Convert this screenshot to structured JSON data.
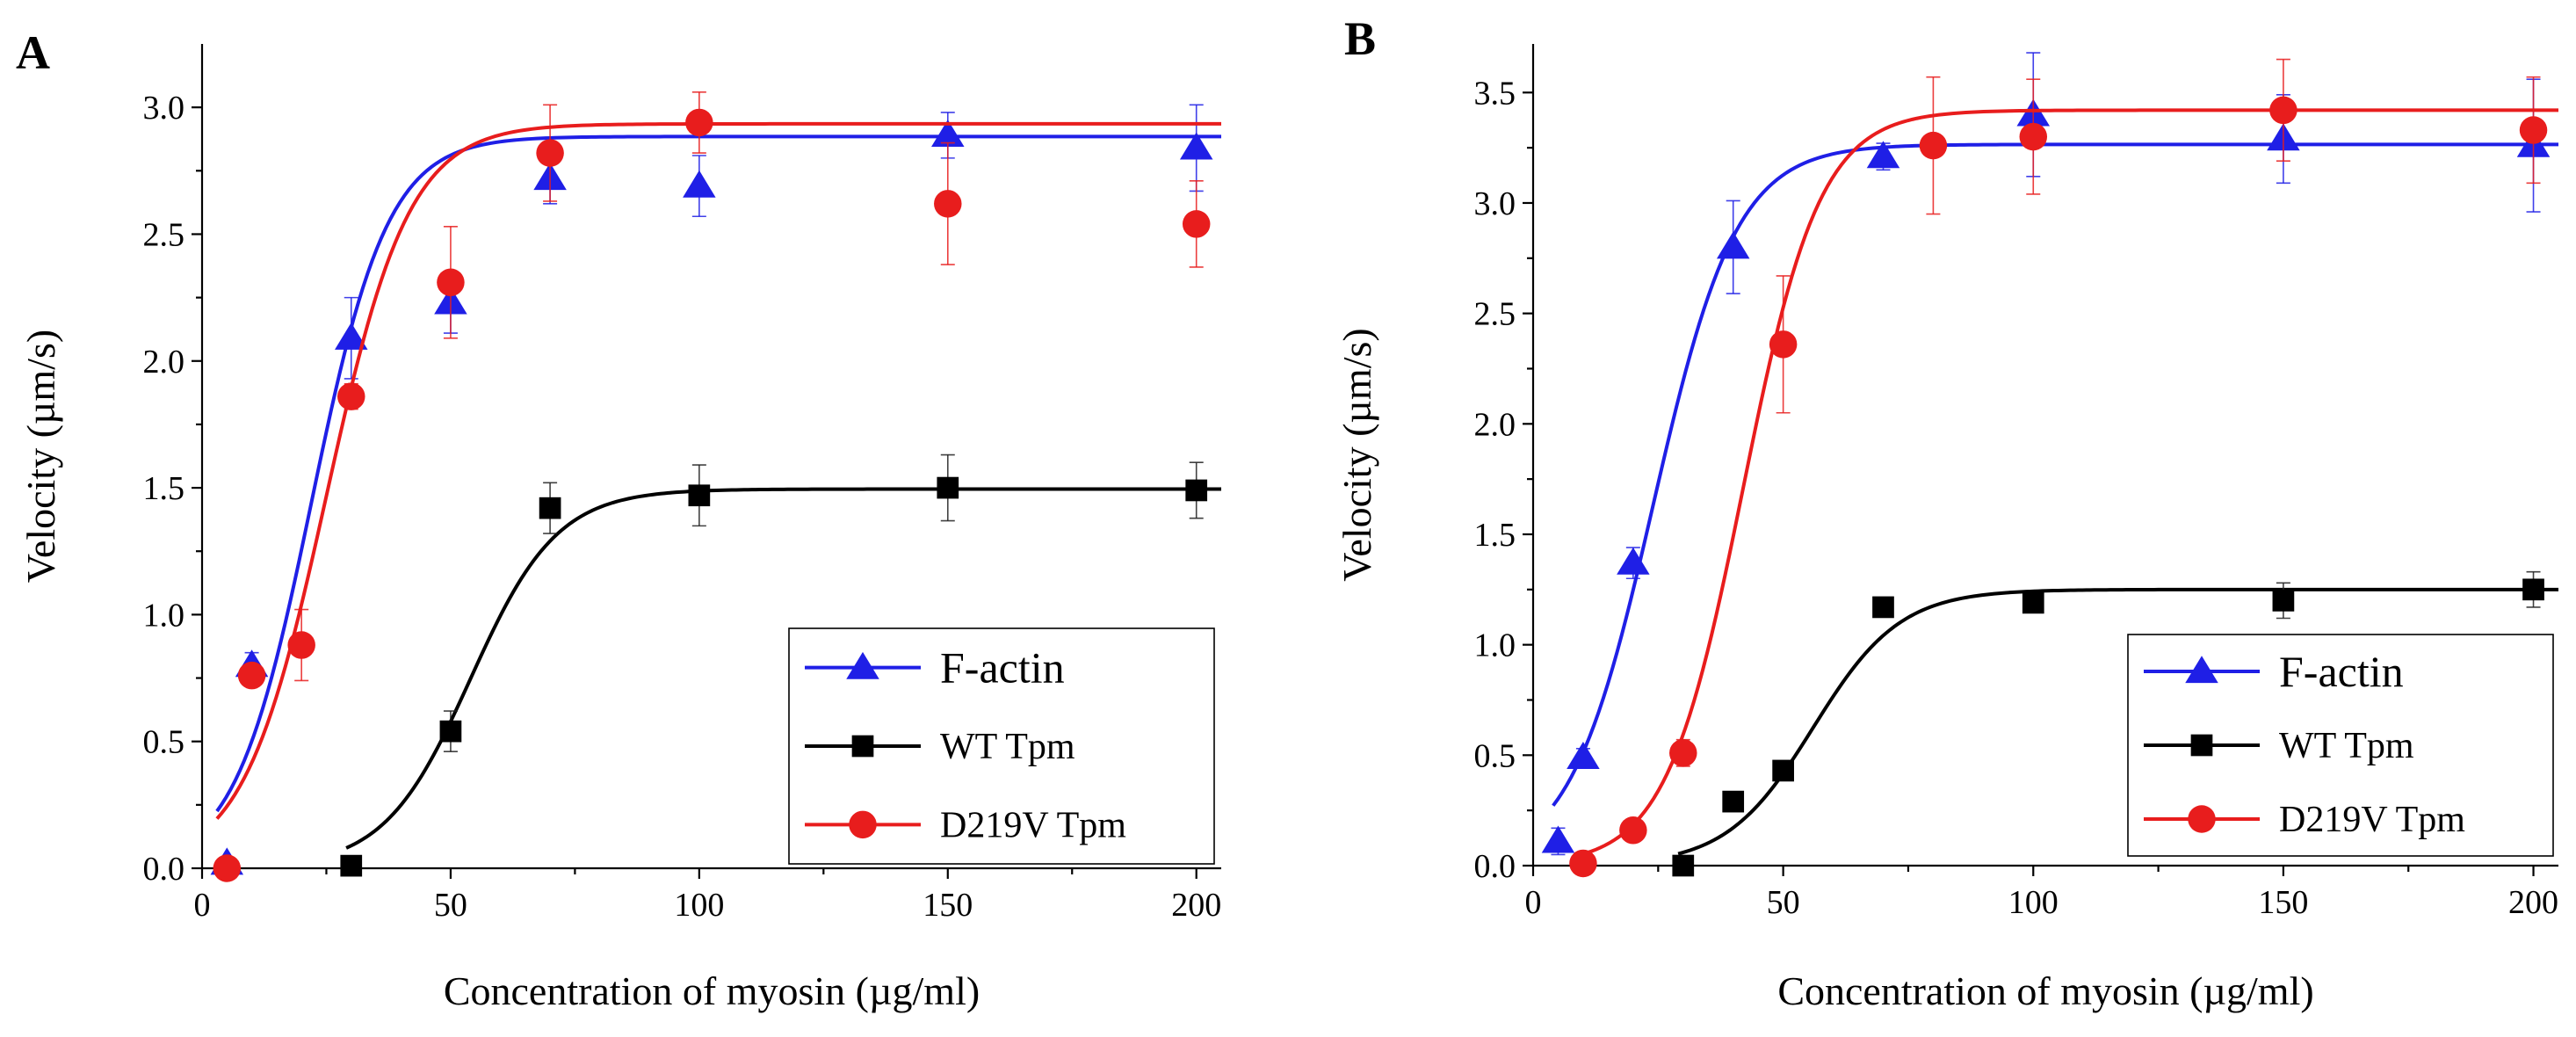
{
  "chart_data": [
    {
      "type": "scatter",
      "panel_label": "A",
      "title": "",
      "xlabel": "Concentration of myosin (µg/ml)",
      "ylabel": "Velocity (µm/s)",
      "xlim": [
        0,
        205
      ],
      "ylim": [
        0,
        3.25
      ],
      "xticks": [
        0,
        50,
        100,
        150,
        200
      ],
      "yticks": [
        0.0,
        0.5,
        1.0,
        1.5,
        2.0,
        2.5,
        3.0
      ],
      "xtick_labels": [
        "0",
        "50",
        "100",
        "150",
        "200"
      ],
      "ytick_labels": [
        "0.0",
        "0.5",
        "1.0",
        "1.5",
        "2.0",
        "2.5",
        "3.0"
      ],
      "legend_position": "bottom-right",
      "series": [
        {
          "name": "F-actin",
          "color": "#1f1fe6",
          "marker": "triangle",
          "points": [
            {
              "x": 5,
              "y": 0.02,
              "err": 0.02
            },
            {
              "x": 10,
              "y": 0.8,
              "err": 0.05
            },
            {
              "x": 30,
              "y": 2.09,
              "err": 0.16
            },
            {
              "x": 50,
              "y": 2.23,
              "err": 0.12
            },
            {
              "x": 70,
              "y": 2.72,
              "err": 0.1
            },
            {
              "x": 100,
              "y": 2.69,
              "err": 0.12
            },
            {
              "x": 150,
              "y": 2.89,
              "err": 0.09
            },
            {
              "x": 200,
              "y": 2.84,
              "err": 0.17
            }
          ],
          "fit": {
            "plateau": 2.885,
            "k": 0.13,
            "x_half": 22,
            "x_start": 3,
            "x_end": 205
          }
        },
        {
          "name": "WT Tpm",
          "color": "#000000",
          "marker": "square",
          "points": [
            {
              "x": 30,
              "y": 0.01,
              "err": 0
            },
            {
              "x": 50,
              "y": 0.54,
              "err": 0.08
            },
            {
              "x": 70,
              "y": 1.42,
              "err": 0.1
            },
            {
              "x": 100,
              "y": 1.47,
              "err": 0.12
            },
            {
              "x": 150,
              "y": 1.5,
              "err": 0.13
            },
            {
              "x": 200,
              "y": 1.49,
              "err": 0.11
            }
          ],
          "fit": {
            "plateau": 1.495,
            "k": 0.115,
            "x_half": 54,
            "x_start": 29,
            "x_end": 205
          }
        },
        {
          "name": "D219V Tpm",
          "color": "#e81d1d",
          "marker": "circle",
          "points": [
            {
              "x": 5,
              "y": 0.0,
              "err": 0
            },
            {
              "x": 10,
              "y": 0.76,
              "err": 0.03
            },
            {
              "x": 20,
              "y": 0.88,
              "err": 0.14
            },
            {
              "x": 30,
              "y": 1.86,
              "err": 0.05
            },
            {
              "x": 50,
              "y": 2.31,
              "err": 0.22
            },
            {
              "x": 70,
              "y": 2.82,
              "err": 0.19
            },
            {
              "x": 100,
              "y": 2.94,
              "err": 0.12
            },
            {
              "x": 150,
              "y": 2.62,
              "err": 0.24
            },
            {
              "x": 200,
              "y": 2.54,
              "err": 0.17
            }
          ],
          "fit": {
            "plateau": 2.935,
            "k": 0.12,
            "x_half": 25,
            "x_start": 3,
            "x_end": 205
          }
        }
      ]
    },
    {
      "type": "scatter",
      "panel_label": "B",
      "title": "",
      "xlabel": "Concentration of myosin (µg/ml)",
      "ylabel": "Velocity (µm/s)",
      "xlim": [
        0,
        205
      ],
      "ylim": [
        0,
        3.72
      ],
      "xticks": [
        0,
        50,
        100,
        150,
        200
      ],
      "yticks": [
        0.0,
        0.5,
        1.0,
        1.5,
        2.0,
        2.5,
        3.0,
        3.5
      ],
      "xtick_labels": [
        "0",
        "50",
        "100",
        "150",
        "200"
      ],
      "ytick_labels": [
        "0.0",
        "0.5",
        "1.0",
        "1.5",
        "2.0",
        "2.5",
        "3.0",
        "3.5"
      ],
      "legend_position": "bottom-right",
      "series": [
        {
          "name": "F-actin",
          "color": "#1f1fe6",
          "marker": "triangle",
          "points": [
            {
              "x": 5,
              "y": 0.11,
              "err": 0.06
            },
            {
              "x": 10,
              "y": 0.49,
              "err": 0.04
            },
            {
              "x": 20,
              "y": 1.37,
              "err": 0.07
            },
            {
              "x": 40,
              "y": 2.8,
              "err": 0.21
            },
            {
              "x": 70,
              "y": 3.21,
              "err": 0.06
            },
            {
              "x": 100,
              "y": 3.4,
              "err": 0.28
            },
            {
              "x": 150,
              "y": 3.29,
              "err": 0.2
            },
            {
              "x": 200,
              "y": 3.26,
              "err": 0.3
            }
          ],
          "fit": {
            "plateau": 3.265,
            "k": 0.12,
            "x_half": 24,
            "x_start": 4,
            "x_end": 205
          }
        },
        {
          "name": "WT Tpm",
          "color": "#000000",
          "marker": "square",
          "points": [
            {
              "x": 30,
              "y": 0.0,
              "err": 0
            },
            {
              "x": 40,
              "y": 0.29,
              "err": 0
            },
            {
              "x": 50,
              "y": 0.43,
              "err": 0
            },
            {
              "x": 70,
              "y": 1.17,
              "err": 0.03
            },
            {
              "x": 100,
              "y": 1.19,
              "err": 0.03
            },
            {
              "x": 150,
              "y": 1.2,
              "err": 0.08
            },
            {
              "x": 200,
              "y": 1.25,
              "err": 0.08
            }
          ],
          "fit": {
            "plateau": 1.25,
            "k": 0.115,
            "x_half": 56,
            "x_start": 29,
            "x_end": 205
          }
        },
        {
          "name": "D219V Tpm",
          "color": "#e81d1d",
          "marker": "circle",
          "points": [
            {
              "x": 10,
              "y": 0.01,
              "err": 0
            },
            {
              "x": 20,
              "y": 0.16,
              "err": 0
            },
            {
              "x": 30,
              "y": 0.51,
              "err": 0.06
            },
            {
              "x": 50,
              "y": 2.36,
              "err": 0.31
            },
            {
              "x": 80,
              "y": 3.26,
              "err": 0.31
            },
            {
              "x": 100,
              "y": 3.3,
              "err": 0.26
            },
            {
              "x": 150,
              "y": 3.42,
              "err": 0.23
            },
            {
              "x": 200,
              "y": 3.33,
              "err": 0.24
            }
          ],
          "fit": {
            "plateau": 3.42,
            "k": 0.13,
            "x_half": 42,
            "x_start": 9,
            "x_end": 205
          }
        }
      ]
    }
  ]
}
